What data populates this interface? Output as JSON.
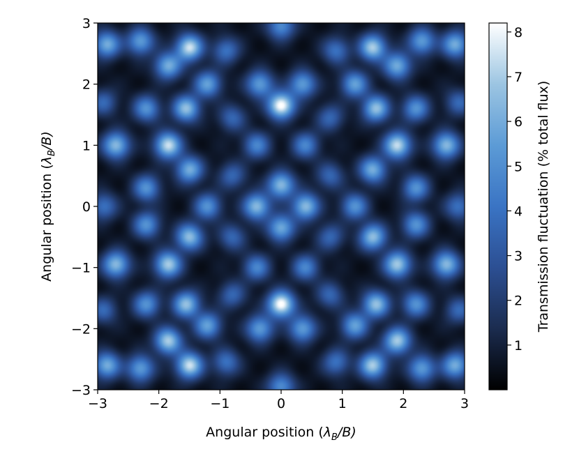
{
  "chart_data": {
    "type": "heatmap",
    "title": "",
    "xlabel": "Angular position (λB/B)",
    "ylabel": "Angular position (λB/B)",
    "xlabel_parts": {
      "prefix": "Angular position (",
      "symbol": "λ",
      "subscript": "B",
      "suffix": "/B)"
    },
    "ylabel_parts": {
      "prefix": "Angular position (",
      "symbol": "λ",
      "subscript": "B",
      "suffix": "/B)"
    },
    "xlim": [
      -3,
      3
    ],
    "ylim": [
      -3,
      3
    ],
    "xticks": [
      -3,
      -2,
      -1,
      0,
      1,
      2,
      3
    ],
    "yticks": [
      -3,
      -2,
      -1,
      0,
      1,
      2,
      3
    ],
    "xtick_labels": [
      "−3",
      "−2",
      "−1",
      "0",
      "1",
      "2",
      "3"
    ],
    "ytick_labels": [
      "−3",
      "−2",
      "−1",
      "0",
      "1",
      "2",
      "3"
    ],
    "grid": false,
    "colorbar": {
      "label": "Transmission fluctuation (% total flux)",
      "range": [
        0,
        8.2
      ],
      "ticks": [
        1,
        2,
        3,
        4,
        5,
        6,
        7,
        8
      ],
      "tick_labels": [
        "1",
        "2",
        "3",
        "4",
        "5",
        "6",
        "7",
        "8"
      ],
      "colormap": [
        "#000000",
        "#1b2c4f",
        "#2c4f93",
        "#3a74c4",
        "#5c9bd6",
        "#9cc5e2",
        "#ffffff"
      ]
    },
    "peaks": [
      {
        "x": 0,
        "y": 1.65,
        "value": 8.0
      },
      {
        "x": 0,
        "y": -1.6,
        "value": 8.0
      },
      {
        "x": 0,
        "y": 0.35,
        "value": 6.0
      },
      {
        "x": 0,
        "y": -0.35,
        "value": 5.5
      },
      {
        "x": -0.4,
        "y": 0,
        "value": 6.0
      },
      {
        "x": 0.4,
        "y": 0,
        "value": 6.0
      },
      {
        "x": -1.85,
        "y": 1.0,
        "value": 7.0
      },
      {
        "x": 1.9,
        "y": 1.0,
        "value": 7.0
      },
      {
        "x": -1.85,
        "y": -0.95,
        "value": 6.5
      },
      {
        "x": 1.9,
        "y": -0.95,
        "value": 6.5
      },
      {
        "x": -1.5,
        "y": 2.6,
        "value": 7.0
      },
      {
        "x": 1.5,
        "y": 2.6,
        "value": 6.5
      },
      {
        "x": -1.5,
        "y": -2.6,
        "value": 7.0
      },
      {
        "x": 1.5,
        "y": -2.6,
        "value": 6.5
      },
      {
        "x": -1.85,
        "y": -2.2,
        "value": 6.5
      },
      {
        "x": 1.9,
        "y": -2.2,
        "value": 6.5
      },
      {
        "x": -1.85,
        "y": 2.3,
        "value": 5.5
      },
      {
        "x": 1.9,
        "y": 2.3,
        "value": 5.5
      },
      {
        "x": -1.55,
        "y": 1.6,
        "value": 6.0
      },
      {
        "x": 1.55,
        "y": 1.6,
        "value": 6.0
      },
      {
        "x": -1.5,
        "y": -0.5,
        "value": 6.0
      },
      {
        "x": 1.5,
        "y": -0.5,
        "value": 6.0
      },
      {
        "x": -1.55,
        "y": -1.6,
        "value": 6.0
      },
      {
        "x": 1.55,
        "y": -1.6,
        "value": 6.0
      },
      {
        "x": -1.5,
        "y": 0.6,
        "value": 5.5
      },
      {
        "x": 1.5,
        "y": 0.6,
        "value": 5.5
      },
      {
        "x": -2.7,
        "y": 1.0,
        "value": 6.0
      },
      {
        "x": 2.7,
        "y": 1.0,
        "value": 6.0
      },
      {
        "x": -2.7,
        "y": -0.95,
        "value": 6.0
      },
      {
        "x": 2.7,
        "y": -0.95,
        "value": 6.0
      },
      {
        "x": -2.85,
        "y": 2.65,
        "value": 5.5
      },
      {
        "x": 2.85,
        "y": 2.65,
        "value": 5.5
      },
      {
        "x": -2.85,
        "y": -2.6,
        "value": 5.5
      },
      {
        "x": 2.85,
        "y": -2.6,
        "value": 5.5
      },
      {
        "x": -2.3,
        "y": 2.7,
        "value": 5.0
      },
      {
        "x": 2.3,
        "y": 2.7,
        "value": 5.0
      },
      {
        "x": -2.3,
        "y": -2.65,
        "value": 5.0
      },
      {
        "x": 2.3,
        "y": -2.65,
        "value": 5.0
      },
      {
        "x": -1.2,
        "y": 2.0,
        "value": 5.0
      },
      {
        "x": 1.2,
        "y": 2.0,
        "value": 5.0
      },
      {
        "x": -1.2,
        "y": -1.95,
        "value": 5.0
      },
      {
        "x": 1.2,
        "y": -1.95,
        "value": 5.0
      },
      {
        "x": -0.35,
        "y": 2.0,
        "value": 5.0
      },
      {
        "x": 0.35,
        "y": 2.0,
        "value": 5.0
      },
      {
        "x": -0.35,
        "y": -2.0,
        "value": 5.0
      },
      {
        "x": 0.35,
        "y": -2.0,
        "value": 5.0
      },
      {
        "x": -1.2,
        "y": 0.0,
        "value": 4.5
      },
      {
        "x": 1.2,
        "y": 0.0,
        "value": 4.5
      },
      {
        "x": -0.4,
        "y": 1.0,
        "value": 4.0
      },
      {
        "x": 0.4,
        "y": 1.0,
        "value": 4.0
      },
      {
        "x": -0.4,
        "y": -1.0,
        "value": 4.0
      },
      {
        "x": 0.4,
        "y": -1.0,
        "value": 4.0
      },
      {
        "x": 0.0,
        "y": 2.95,
        "value": 4.5
      },
      {
        "x": 0.0,
        "y": -2.95,
        "value": 4.5
      },
      {
        "x": -2.2,
        "y": 0.3,
        "value": 4.5
      },
      {
        "x": 2.2,
        "y": 0.3,
        "value": 4.5
      },
      {
        "x": -2.2,
        "y": -0.3,
        "value": 4.5
      },
      {
        "x": 2.2,
        "y": -0.3,
        "value": 4.5
      },
      {
        "x": -2.2,
        "y": 1.6,
        "value": 4.5
      },
      {
        "x": 2.2,
        "y": 1.6,
        "value": 4.5
      },
      {
        "x": -2.2,
        "y": -1.6,
        "value": 4.5
      },
      {
        "x": 2.2,
        "y": -1.6,
        "value": 4.5
      },
      {
        "x": -0.9,
        "y": 2.55,
        "value": 3.5
      },
      {
        "x": 0.9,
        "y": 2.55,
        "value": 3.5
      },
      {
        "x": -0.9,
        "y": -2.55,
        "value": 3.5
      },
      {
        "x": 0.9,
        "y": -2.55,
        "value": 3.5
      },
      {
        "x": -2.9,
        "y": 0.0,
        "value": 3.5
      },
      {
        "x": 2.9,
        "y": 0.0,
        "value": 3.5
      },
      {
        "x": -2.9,
        "y": 1.7,
        "value": 3.0
      },
      {
        "x": 2.9,
        "y": 1.7,
        "value": 3.0
      },
      {
        "x": -2.9,
        "y": -1.7,
        "value": 3.0
      },
      {
        "x": 2.9,
        "y": -1.7,
        "value": 3.0
      },
      {
        "x": -0.8,
        "y": 1.45,
        "value": 3.0
      },
      {
        "x": 0.8,
        "y": 1.45,
        "value": 3.0
      },
      {
        "x": -0.8,
        "y": -1.45,
        "value": 3.0
      },
      {
        "x": 0.8,
        "y": -1.45,
        "value": 3.0
      },
      {
        "x": -0.8,
        "y": 0.5,
        "value": 3.0
      },
      {
        "x": 0.8,
        "y": 0.5,
        "value": 3.0
      },
      {
        "x": -0.8,
        "y": -0.5,
        "value": 3.0
      },
      {
        "x": 0.8,
        "y": -0.5,
        "value": 3.0
      }
    ]
  }
}
